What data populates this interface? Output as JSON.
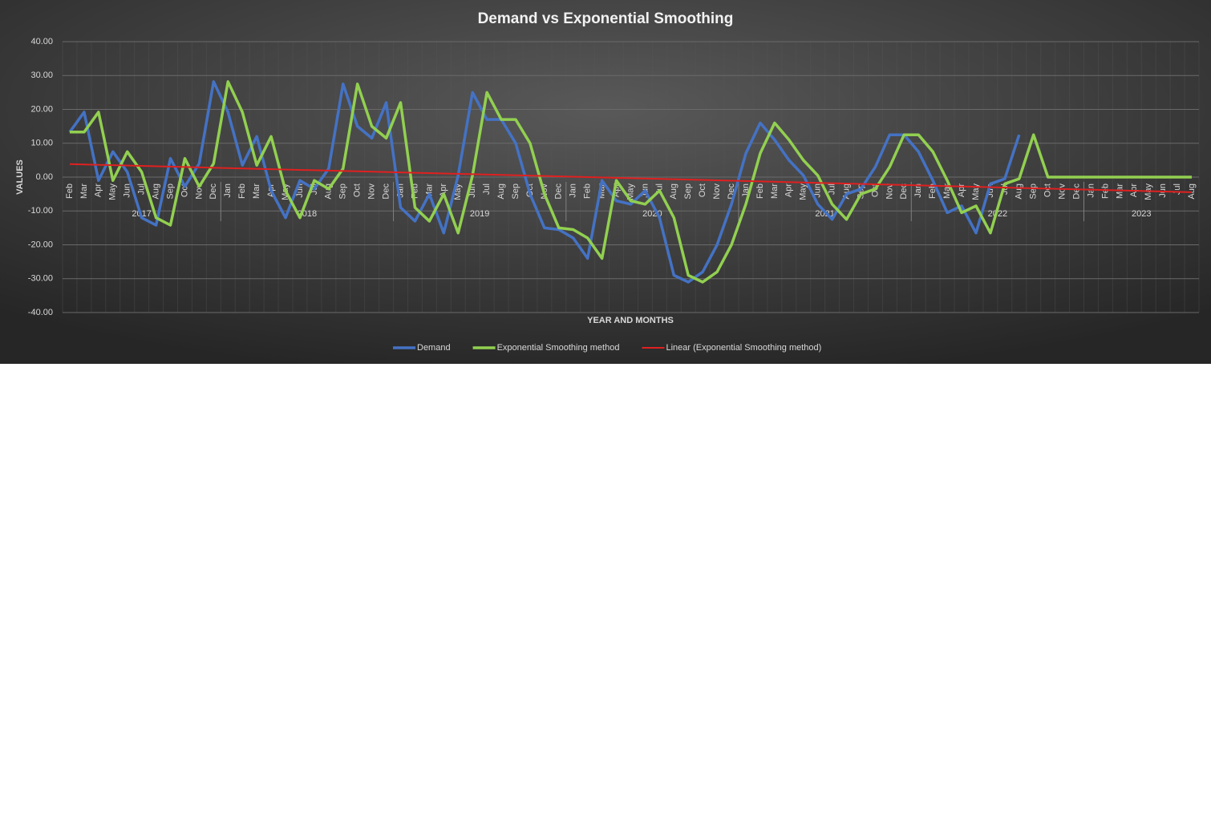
{
  "chart_data": {
    "type": "line",
    "title": "Demand vs Exponential Smoothing",
    "x_label": "YEAR AND MONTHS",
    "y_label": "VALUES",
    "categories": [
      "Feb",
      "Mar",
      "Apr",
      "May",
      "Jun",
      "Jul",
      "Aug",
      "Sep",
      "Oct",
      "Nov",
      "Dec",
      "Jan",
      "Feb",
      "Mar",
      "Apr",
      "May",
      "Jun",
      "Jul",
      "Aug",
      "Sep",
      "Oct",
      "Nov",
      "Dec",
      "Jan",
      "Feb",
      "Mar",
      "Apr",
      "May",
      "Jun",
      "Jul",
      "Aug",
      "Sep",
      "Oct",
      "Nov",
      "Dec",
      "Jan",
      "Feb",
      "Mar",
      "Apr",
      "May",
      "Jun",
      "Jul",
      "Aug",
      "Sep",
      "Oct",
      "Nov",
      "Dec",
      "Jan",
      "Feb",
      "Mar",
      "Apr",
      "May",
      "Jun",
      "Jul",
      "Aug",
      "Sep",
      "Oct",
      "Nov",
      "Dec",
      "Jan",
      "Feb",
      "Mar",
      "Apr",
      "May",
      "Jun",
      "Jul",
      "Aug",
      "Sep",
      "Oct",
      "Nov",
      "Dec",
      "Jan",
      "Feb",
      "Mar",
      "Apr",
      "May",
      "Jun",
      "Jul",
      "Aug"
    ],
    "years": [
      "2017",
      "2018",
      "2019",
      "2020",
      "2021",
      "2022",
      "2023"
    ],
    "series": [
      {
        "name": "Demand",
        "color": "#4472c4",
        "values": [
          13.3,
          19.2,
          -1,
          7.5,
          1.5,
          -12,
          -14.2,
          5.5,
          -2.8,
          4,
          28.2,
          19.2,
          3.5,
          12,
          -4,
          -12,
          -1,
          -3.5,
          2.5,
          27.5,
          15,
          11.5,
          22,
          -9,
          -13,
          -5,
          -16.5,
          0.5,
          25,
          17,
          17,
          10,
          -5,
          -15,
          -15.5,
          -18,
          -24,
          -1,
          -7,
          -8,
          -4,
          -12,
          -29,
          -31,
          -28,
          -20,
          -8,
          7,
          16,
          11,
          5,
          0.5,
          -8,
          -12.5,
          -5,
          -3.5,
          3,
          12.5,
          12.5,
          7.5,
          -1,
          -10.5,
          -8.5,
          -16.5,
          -2,
          -0.5,
          12.5,
          null,
          null,
          null,
          null,
          null,
          null,
          null,
          null,
          null,
          null,
          null,
          null
        ]
      },
      {
        "name": "Exponential Smoothing method",
        "color": "#92d050",
        "values": [
          13.3,
          13.3,
          19.2,
          -1,
          7.5,
          1.5,
          -12,
          -14.2,
          5.5,
          -2.8,
          4,
          28.2,
          19.2,
          3.5,
          12,
          -4,
          -12,
          -1,
          -3.5,
          2.5,
          27.5,
          15,
          11.5,
          22,
          -9,
          -13,
          -5,
          -16.5,
          0.5,
          25,
          17,
          17,
          10,
          -5,
          -15,
          -15.5,
          -18,
          -24,
          -1,
          -7,
          -8,
          -4,
          -12,
          -29,
          -31,
          -28,
          -20,
          -8,
          7,
          16,
          11,
          5,
          0.5,
          -8,
          -12.5,
          -5,
          -3.5,
          3,
          12.5,
          12.5,
          7.5,
          -1,
          -10.5,
          -8.5,
          -16.5,
          -2,
          -0.5,
          12.5,
          0,
          0,
          0,
          0,
          0,
          0,
          0,
          0,
          0,
          0,
          0
        ]
      }
    ],
    "trendline": {
      "name": "Linear (Exponential Smoothing method)",
      "color": "#e02020",
      "of_series": 1,
      "kind": "linear"
    },
    "ylim": [
      -40,
      40
    ],
    "yticks": [
      {
        "value": -40,
        "label": "-40.00"
      },
      {
        "value": -30,
        "label": "-30.00"
      },
      {
        "value": -20,
        "label": "-20.00"
      },
      {
        "value": -10,
        "label": "-10.00"
      },
      {
        "value": 0,
        "label": "0.00"
      },
      {
        "value": 10,
        "label": "10.00"
      },
      {
        "value": 20,
        "label": "20.00"
      },
      {
        "value": 30,
        "label": "30.00"
      },
      {
        "value": 40,
        "label": "40.00"
      }
    ],
    "grid": true,
    "legend": "bottom"
  }
}
